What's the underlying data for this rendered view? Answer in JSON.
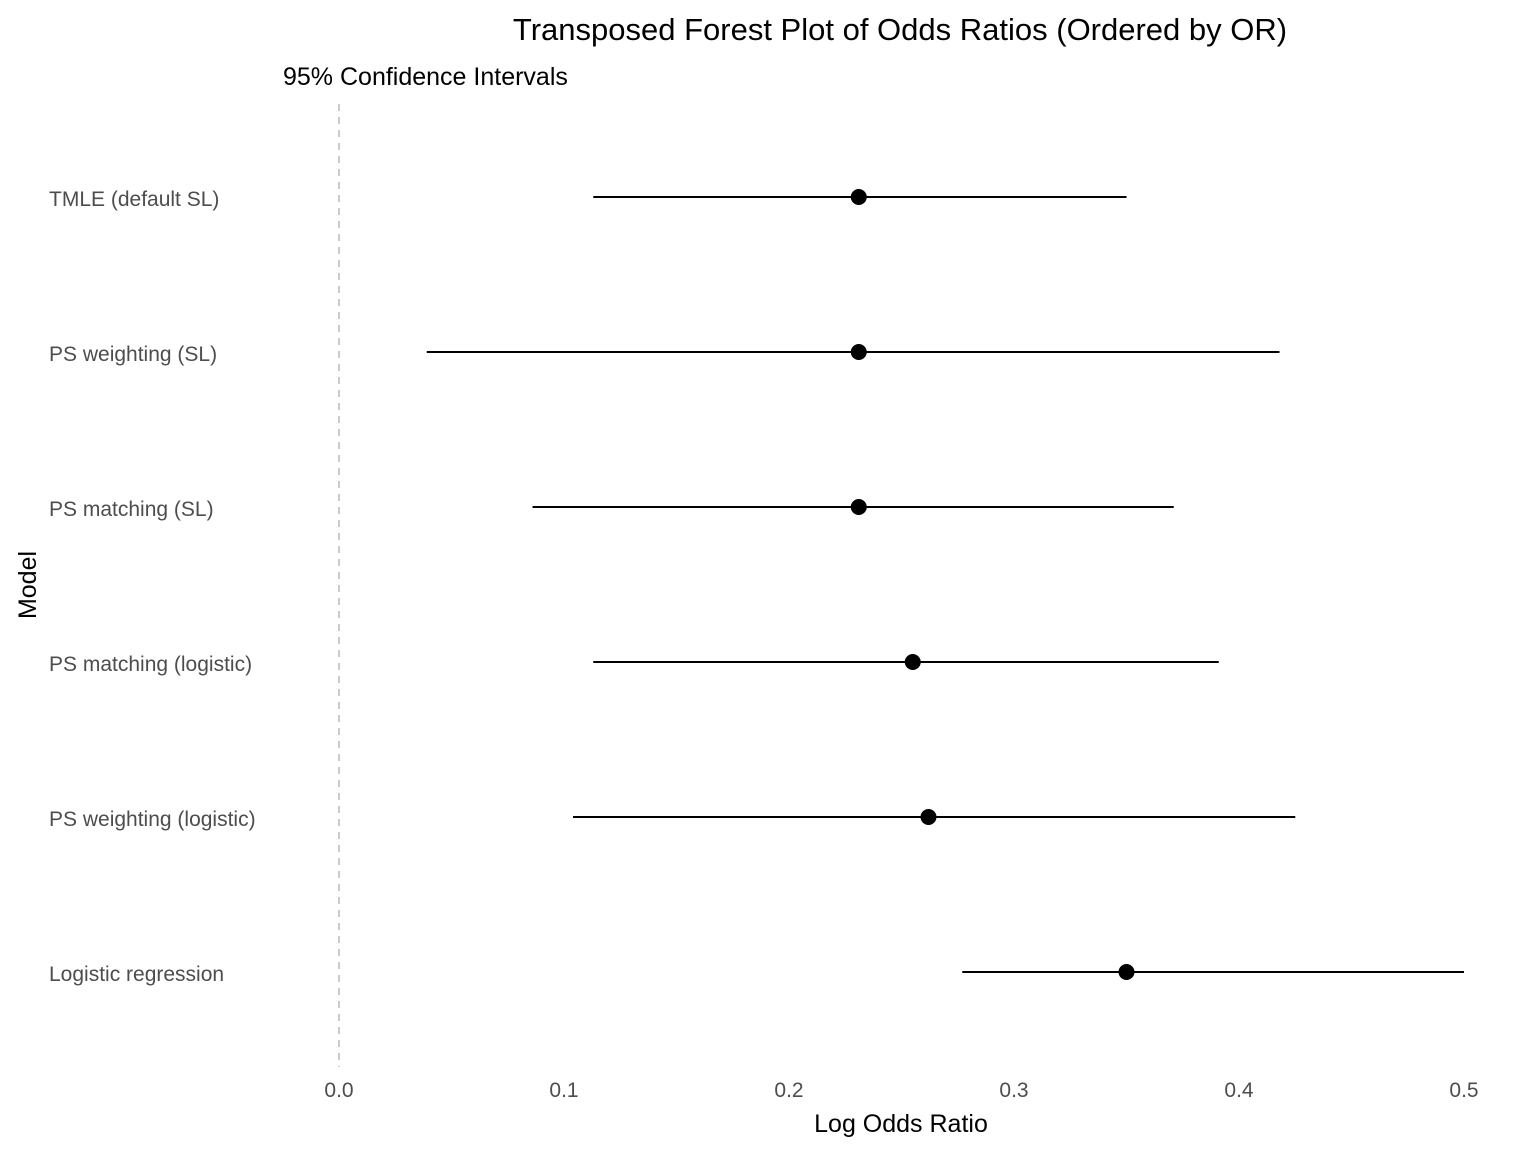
{
  "chart_data": {
    "type": "scatter",
    "title": "Transposed Forest Plot of Odds Ratios (Ordered by OR)",
    "subtitle": "95% Confidence Intervals",
    "xlabel": "Log Odds Ratio",
    "ylabel": "Model",
    "xlim": [
      -0.07,
      0.5
    ],
    "x_ticks": [
      0.0,
      0.1,
      0.2,
      0.3,
      0.4,
      0.5
    ],
    "x_tick_labels": [
      "0.0",
      "0.1",
      "0.2",
      "0.3",
      "0.4",
      "0.5"
    ],
    "reference_line": {
      "x": 0,
      "style": "dashed"
    },
    "grid": false,
    "models": [
      {
        "label": "TMLE (default SL)",
        "estimate": 0.231,
        "lower": 0.113,
        "upper": 0.35
      },
      {
        "label": "PS weighting (SL)",
        "estimate": 0.231,
        "lower": 0.039,
        "upper": 0.418
      },
      {
        "label": "PS matching (SL)",
        "estimate": 0.231,
        "lower": 0.086,
        "upper": 0.371
      },
      {
        "label": "PS matching (logistic)",
        "estimate": 0.255,
        "lower": 0.113,
        "upper": 0.391
      },
      {
        "label": "PS weighting (logistic)",
        "estimate": 0.262,
        "lower": 0.104,
        "upper": 0.425
      },
      {
        "label": "Logistic regression",
        "estimate": 0.35,
        "lower": 0.277,
        "upper": 0.5
      }
    ],
    "colors": {
      "point": "#000000",
      "interval": "#000000",
      "reference_line": "#bdbdbd"
    }
  }
}
